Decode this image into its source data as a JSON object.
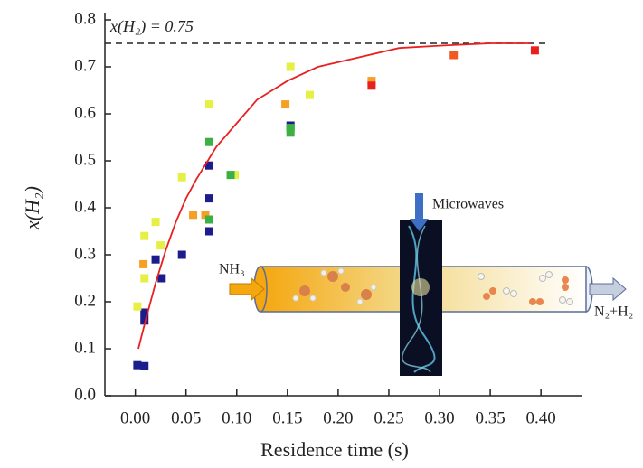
{
  "chart_data": {
    "type": "scatter",
    "xlabel": "Residence time (s)",
    "ylabel": "x(H₂)",
    "annotation": "x(H₂) = 0.75",
    "hline": 0.75,
    "xlim": [
      -0.03,
      0.44
    ],
    "ylim": [
      0,
      0.8
    ],
    "xticks": [
      {
        "value": 0,
        "label": "0.00"
      },
      0.05,
      {
        "value": 0.1,
        "label": "0.10"
      },
      0.15,
      {
        "value": 0.2,
        "label": "0.20"
      },
      0.25,
      {
        "value": 0.3,
        "label": "0.30"
      },
      0.35,
      {
        "value": 0.4,
        "label": "0.40"
      }
    ],
    "yticks": [
      {
        "value": 0,
        "label": "0.0"
      },
      0.1,
      0.2,
      0.3,
      0.4,
      0.5,
      0.6,
      0.7,
      0.8
    ],
    "series": [
      {
        "color": "#1c1c8c",
        "x": [
          0.002,
          0.009,
          0.009,
          0.009,
          0.02,
          0.026,
          0.046,
          0.073,
          0.073,
          0.073,
          0.153
        ],
        "values": [
          0.065,
          0.063,
          0.177,
          0.16,
          0.29,
          0.25,
          0.3,
          0.49,
          0.42,
          0.35,
          0.575
        ]
      },
      {
        "color": "#e6f044",
        "x": [
          0.002,
          0.009,
          0.009,
          0.02,
          0.025,
          0.046,
          0.073,
          0.098,
          0.153,
          0.172
        ],
        "values": [
          0.19,
          0.34,
          0.25,
          0.37,
          0.32,
          0.465,
          0.62,
          0.47,
          0.7,
          0.64
        ]
      },
      {
        "color": "#f5a023",
        "x": [
          0.008,
          0.057,
          0.069,
          0.148,
          0.233
        ],
        "values": [
          0.28,
          0.385,
          0.385,
          0.62,
          0.67
        ]
      },
      {
        "color": "#3cb043",
        "x": [
          0.073,
          0.073,
          0.094,
          0.153,
          0.153
        ],
        "values": [
          0.54,
          0.375,
          0.47,
          0.57,
          0.56
        ]
      },
      {
        "color": "#f05a22",
        "x": [
          0.314
        ],
        "values": [
          0.725
        ]
      },
      {
        "color": "#e82020",
        "x": [
          0.233,
          0.394
        ],
        "values": [
          0.66,
          0.735
        ]
      },
      {
        "type": "line",
        "color": "#e82020",
        "x": [
          0.003,
          0.01,
          0.02,
          0.03,
          0.04,
          0.05,
          0.06,
          0.08,
          0.1,
          0.12,
          0.15,
          0.18,
          0.22,
          0.26,
          0.3,
          0.35,
          0.39
        ],
        "values": [
          0.1,
          0.16,
          0.24,
          0.31,
          0.37,
          0.42,
          0.46,
          0.53,
          0.58,
          0.63,
          0.67,
          0.7,
          0.72,
          0.74,
          0.745,
          0.75,
          0.75
        ]
      }
    ]
  },
  "inset": {
    "top_label": "Microwaves",
    "input_label": "NH₃",
    "output_label": "N₂+H₂"
  }
}
